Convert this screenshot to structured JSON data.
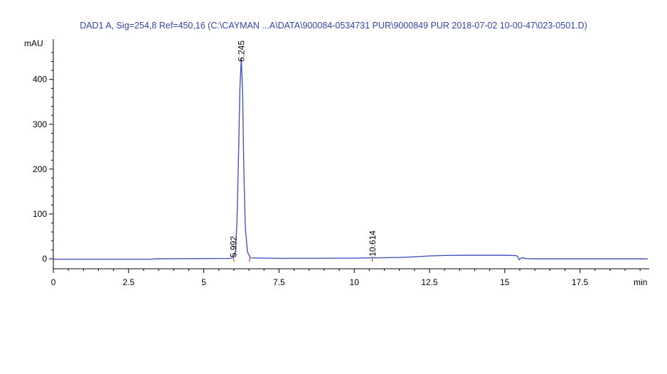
{
  "chart_data": {
    "type": "line",
    "title": "DAD1 A, Sig=254,8 Ref=450,16 (C:\\CAYMAN ...A\\DATA\\900084-0534731 PUR\\9000849 PUR 2018-07-02 10-00-47\\023-0501.D)",
    "ylabel": "mAU",
    "xlabel": "min",
    "xlim": [
      0,
      19.75
    ],
    "ylim": [
      -8,
      475
    ],
    "x_ticks": [
      0,
      2.5,
      5,
      7.5,
      10,
      12.5,
      15,
      17.5
    ],
    "x_tick_labels": [
      "0",
      "2.5",
      "5",
      "7.5",
      "10",
      "12.5",
      "15",
      "17.5"
    ],
    "y_ticks": [
      0,
      100,
      200,
      300,
      400
    ],
    "y_tick_labels": [
      "0",
      "100",
      "200",
      "300",
      "400"
    ],
    "line_color": "#4455bb",
    "series": [
      {
        "x": [
          0,
          3.3,
          3.35,
          5.9,
          5.99,
          6.05,
          6.1,
          6.15,
          6.2,
          6.245,
          6.29,
          6.33,
          6.38,
          6.45,
          6.55,
          7.5,
          10.0,
          10.55,
          10.614,
          10.7,
          11.0,
          11.5,
          12.0,
          12.5,
          13.0,
          13.5,
          14.0,
          14.5,
          15.0,
          15.4,
          15.45,
          15.48,
          15.52,
          15.6,
          15.7,
          16.0,
          17.0,
          17.5,
          19.75
        ],
        "y": [
          -1,
          -1,
          0,
          1,
          3,
          15,
          80,
          220,
          380,
          448,
          370,
          200,
          70,
          15,
          2,
          1,
          1.5,
          2,
          3,
          2,
          2.5,
          3,
          4.5,
          6.5,
          7.5,
          8,
          8,
          8,
          8,
          7,
          2,
          -2,
          1,
          2.5,
          0.5,
          0,
          0,
          0,
          0
        ]
      }
    ],
    "peaks": [
      {
        "label": "5.992",
        "x": 5.992
      },
      {
        "label": "6.245",
        "x": 6.245
      },
      {
        "label": "10.614",
        "x": 10.614
      }
    ],
    "integration_markers": [
      6.0,
      6.52,
      10.6
    ]
  }
}
